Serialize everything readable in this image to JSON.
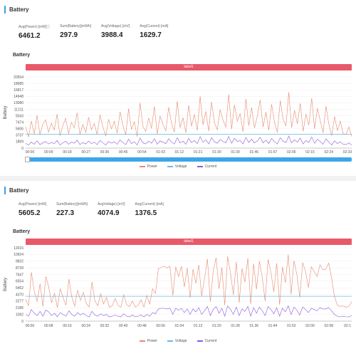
{
  "colors": {
    "power": "#e8896e",
    "voltage": "#6cb8e6",
    "current": "#8a5ae0",
    "label_bar": "#e8596a",
    "slider": "#3ea6e8",
    "title_accent": "#3aa0e8"
  },
  "panels": [
    {
      "section_title": "Battery",
      "stats": [
        {
          "label": "Avg(Power) [mW]ⓘ",
          "value": "6461.2"
        },
        {
          "label": "Sum(Battery)[mWh]",
          "value": "297.9"
        },
        {
          "label": "Avg(Voltage) [mV]",
          "value": "3988.4"
        },
        {
          "label": "Avg(Current) [mA]",
          "value": "1629.7"
        }
      ],
      "chart_title": "Battery",
      "label_bar_text": "label1",
      "legend": [
        "Power",
        "Voltage",
        "Current"
      ]
    },
    {
      "section_title": "Battery",
      "stats": [
        {
          "label": "Avg(Power) [mW]",
          "value": "5605.2"
        },
        {
          "label": "Sum(Battery)[mWh]",
          "value": "227.3"
        },
        {
          "label": "AvgVoltage) [mV]",
          "value": "4074.9"
        },
        {
          "label": "Avg(Current) [mA]",
          "value": "1376.5"
        }
      ],
      "chart_title": "Battery",
      "label_bar_text": "label1",
      "legend": [
        "Power",
        "Voltage",
        "Current"
      ]
    }
  ],
  "chart_data": [
    {
      "type": "line",
      "ylabel": "Battery",
      "yticks": [
        "20554",
        "18685",
        "16817",
        "14948",
        "13080",
        "11211",
        "9343",
        "7474",
        "5606",
        "3737",
        "1869",
        "0"
      ],
      "xticks": [
        "00:00",
        "00:09",
        "00:18",
        "00:27",
        "00:36",
        "00:45",
        "00:54",
        "01:03",
        "01:12",
        "01:21",
        "01:30",
        "01:39",
        "01:46",
        "01:57",
        "02:06",
        "02:15",
        "02:24",
        "02:33"
      ],
      "ylim": [
        0,
        20554
      ],
      "series": [
        {
          "name": "Power",
          "values": [
            6200,
            3200,
            7800,
            4100,
            9500,
            3800,
            6900,
            8200,
            4600,
            7200,
            5200,
            9800,
            3600,
            6400,
            8600,
            4200,
            7400,
            5900,
            10200,
            3900,
            6800,
            4500,
            8900,
            5300,
            7100,
            4000,
            9600,
            6100,
            3500,
            8300,
            5600,
            7700,
            4300,
            10500,
            6600,
            3800,
            11400,
            5400,
            7600,
            3300,
            13080,
            6200,
            4800,
            8700,
            5700,
            12000,
            4100,
            9300,
            6900,
            5000,
            11800,
            7200,
            4600,
            13500,
            5900,
            8800,
            4400,
            12400,
            6300,
            9700,
            5100,
            14948,
            6700,
            10600,
            4900,
            13300,
            7400,
            5300,
            11100,
            8100,
            6000,
            15500,
            5500,
            12500,
            7800,
            9900,
            4700,
            14200,
            6500,
            11700,
            5800,
            9200,
            13900,
            6100,
            10400,
            5200,
            12600,
            7500,
            4500,
            13700,
            8400,
            6400,
            16100,
            5900,
            10900,
            7000,
            12900,
            4800,
            9800,
            6600,
            14400,
            5600,
            11500,
            7900,
            4400,
            12100,
            6800,
            3600,
            9100,
            5000,
            7800,
            4200,
            3900,
            6100,
            3400
          ]
        },
        {
          "name": "Voltage",
          "values": [
            3988,
            3988,
            3988,
            3988,
            3988,
            3988,
            3988,
            3988,
            3988,
            3988
          ]
        },
        {
          "name": "Current",
          "values": [
            1400,
            900,
            1700,
            1100,
            2100,
            1000,
            1500,
            1900,
            1200,
            1600,
            1300,
            2200,
            900,
            1500,
            2000,
            1100,
            1700,
            1400,
            2300,
            1000,
            1600,
            1200,
            2000,
            1300,
            1700,
            1000,
            2200,
            1500,
            900,
            1900,
            1400,
            1800,
            1100,
            2400,
            1600,
            1000,
            2600,
            1300,
            1800,
            900,
            2900,
            1500,
            1200,
            2000,
            1400,
            2700,
            1100,
            2100,
            1700,
            1300,
            2700,
            1700,
            1200,
            3000,
            1500,
            2000,
            1100,
            2800,
            1600,
            2200,
            1300,
            3300,
            1700,
            2400,
            1200,
            3000,
            1800,
            1400,
            2500,
            1900,
            1500,
            3400,
            1400,
            2800,
            1900,
            2200,
            1200,
            3100,
            1600,
            2600,
            1500,
            2100,
            3100,
            1500,
            2300,
            1300,
            2800,
            1800,
            1200,
            3000,
            2000,
            1600,
            3500,
            1500,
            2400,
            1700,
            2900,
            1200,
            2200,
            1600,
            3200,
            1400,
            2600,
            1900,
            1100,
            2700,
            1700,
            900,
            2100,
            1300,
            1800,
            1100,
            1000,
            1500,
            900
          ]
        }
      ]
    },
    {
      "type": "line",
      "ylabel": "Battery",
      "yticks": [
        "12016",
        "10924",
        "9832",
        "8739",
        "7647",
        "6554",
        "5462",
        "4370",
        "3277",
        "2185",
        "1092",
        "0"
      ],
      "xticks": [
        "00:00",
        "00:08",
        "00:16",
        "00:24",
        "00:32",
        "00:40",
        "00:48",
        "00:56",
        "01:04",
        "01:12",
        "01:20",
        "01:28",
        "01:36",
        "01:44",
        "01:52",
        "02:00",
        "02:08",
        "02:1"
      ],
      "ylim": [
        0,
        12016
      ],
      "series": [
        {
          "name": "Power",
          "values": [
            3600,
            2500,
            8000,
            4800,
            3200,
            6100,
            2400,
            7300,
            5600,
            3000,
            4600,
            2200,
            5300,
            3800,
            2600,
            6900,
            4000,
            2400,
            5100,
            3400,
            4700,
            2900,
            2300,
            6400,
            3300,
            2500,
            4500,
            2800,
            3900,
            2300,
            2500,
            3700,
            2600,
            2300,
            4300,
            2700,
            2400,
            3300,
            2300,
            2600,
            3500,
            2300,
            4200,
            2800,
            5300,
            4500,
            8600,
            8800,
            9000,
            8700,
            9000,
            4200,
            8900,
            7300,
            9000,
            5600,
            8700,
            3800,
            8500,
            6200,
            9200,
            4100,
            7000,
            10200,
            3200,
            8200,
            10400,
            5300,
            8800,
            2600,
            10600,
            7800,
            4300,
            9700,
            3000,
            8600,
            6400,
            10300,
            2800,
            9400,
            5200,
            9800,
            7100,
            3300,
            10100,
            8000,
            4800,
            9500,
            2700,
            8900,
            6300,
            10900,
            4400,
            9900,
            7600,
            3900,
            9600,
            8100,
            5500,
            8900,
            8100,
            7300,
            9200,
            8400,
            8500,
            9500,
            7100,
            4100,
            2600,
            2400,
            2500,
            2300,
            2400,
            3200
          ]
        },
        {
          "name": "Voltage",
          "values": [
            4075,
            4075,
            4075,
            4075,
            4075,
            4075,
            4075,
            4075,
            4075,
            4075
          ]
        },
        {
          "name": "Current",
          "values": [
            1100,
            800,
            1900,
            1300,
            900,
            1600,
            800,
            1800,
            1500,
            900,
            1300,
            700,
            1400,
            1100,
            800,
            1700,
            1100,
            800,
            1400,
            1000,
            1300,
            900,
            700,
            1600,
            1000,
            800,
            1200,
            900,
            1100,
            700,
            800,
            1000,
            800,
            700,
            1200,
            800,
            700,
            1000,
            700,
            800,
            1000,
            700,
            1100,
            800,
            1400,
            1200,
            2000,
            2100,
            2100,
            2000,
            2100,
            1100,
            2100,
            1800,
            2100,
            1400,
            2000,
            1100,
            2000,
            1500,
            2200,
            1100,
            1700,
            2400,
            900,
            1900,
            2400,
            1300,
            2100,
            800,
            2500,
            1900,
            1100,
            2300,
            900,
            2000,
            1600,
            2400,
            800,
            2200,
            1300,
            2300,
            1700,
            900,
            2400,
            1900,
            1200,
            2200,
            800,
            2100,
            1500,
            2500,
            1100,
            2300,
            1800,
            1000,
            2300,
            1900,
            1400,
            2100,
            1900,
            1700,
            2200,
            2000,
            2000,
            2200,
            1700,
            1100,
            800,
            700,
            800,
            700,
            700,
            900
          ]
        }
      ]
    }
  ]
}
